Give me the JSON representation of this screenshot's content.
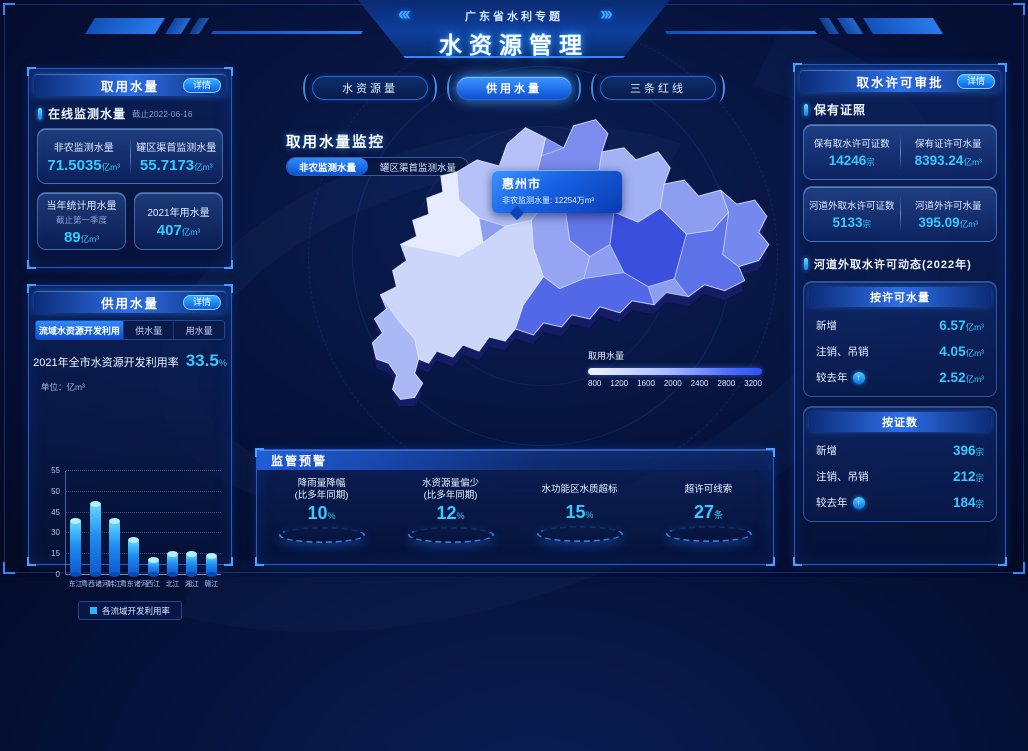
{
  "header": {
    "subtitle": "广东省水利专题",
    "title": "水资源管理"
  },
  "icons": {
    "chev_left": "‹‹‹",
    "chev_right": "›››",
    "arrow_up": "↑"
  },
  "nav_tabs": [
    {
      "label": "水资源量"
    },
    {
      "label": "供用水量"
    },
    {
      "label": "三条红线"
    }
  ],
  "intake": {
    "title": "取用水量",
    "detail": "详情",
    "online_label": "在线监测水量",
    "online_asof": "截止2022-06-16",
    "stats": [
      {
        "label": "非农监测水量",
        "value": "71.5035",
        "unit": "亿m³"
      },
      {
        "label": "罐区渠首监测水量",
        "value": "55.7173",
        "unit": "亿m³"
      }
    ],
    "cards": [
      {
        "label": "当年统计用水量",
        "sub": "截止第一季度",
        "value": "89",
        "unit": "亿m³"
      },
      {
        "label": "2021年用水量",
        "sub": "",
        "value": "407",
        "unit": "亿m³"
      }
    ]
  },
  "supply": {
    "title": "供用水量",
    "detail": "详情",
    "tabs": [
      {
        "label": "流域水资源开发利用"
      },
      {
        "label": "供水量"
      },
      {
        "label": "用水量"
      }
    ],
    "rate_label": "2021年全市水资源开发利用率",
    "rate_value": "33.5",
    "rate_unit": "%",
    "unit_note": "单位：亿m³",
    "legend": "各流域开发利用率"
  },
  "monitor": {
    "title": "取用水量监控",
    "toggles": [
      {
        "label": "非农监测水量"
      },
      {
        "label": "罐区渠首监测水量"
      }
    ],
    "tooltip": {
      "city": "惠州市",
      "label": "非农监测水量: ",
      "value": "12254万m³"
    },
    "scale": {
      "label": "取用水量",
      "ticks": [
        "800",
        "1200",
        "1600",
        "2000",
        "2400",
        "2800",
        "3200"
      ]
    }
  },
  "warning": {
    "title": "监管预警",
    "items": [
      {
        "label": "降雨量降幅",
        "sub": "(比多年同期)",
        "value": "10",
        "unit": "%"
      },
      {
        "label": "水资源量偏少",
        "sub": "(比多年同期)",
        "value": "12",
        "unit": "%"
      },
      {
        "label": "水功能区水质超标",
        "sub": "",
        "value": "15",
        "unit": "%"
      },
      {
        "label": "超许可线索",
        "sub": "",
        "value": "27",
        "unit": "条"
      }
    ]
  },
  "permit": {
    "title": "取水许可审批",
    "detail": "详情",
    "section1": "保有证照",
    "cards": [
      {
        "label": "保有取水许可证数",
        "value": "14246",
        "unit": "宗"
      },
      {
        "label": "保有证许可水量",
        "value": "8393.24",
        "unit": "亿m³"
      },
      {
        "label": "河道外取水许可证数",
        "value": "5133",
        "unit": "宗"
      },
      {
        "label": "河道外许可水量",
        "value": "395.09",
        "unit": "亿m³"
      }
    ],
    "section2": "河道外取水许可动态(2022年)",
    "by_volume": {
      "title": "按许可水量",
      "rows": [
        {
          "label": "新增",
          "value": "6.57",
          "unit": "亿m³",
          "trend": ""
        },
        {
          "label": "注销、吊销",
          "value": "4.05",
          "unit": "亿m³",
          "trend": ""
        },
        {
          "label": "较去年",
          "value": "2.52",
          "unit": "亿m³",
          "trend": "up"
        }
      ]
    },
    "by_count": {
      "title": "按证数",
      "rows": [
        {
          "label": "新增",
          "value": "396",
          "unit": "宗",
          "trend": ""
        },
        {
          "label": "注销、吊销",
          "value": "212",
          "unit": "宗",
          "trend": ""
        },
        {
          "label": "较去年",
          "value": "184",
          "unit": "宗",
          "trend": "up"
        }
      ]
    }
  },
  "chart_data": {
    "type": "bar",
    "title": "各流域开发利用率",
    "unit": "亿m³",
    "categories": [
      "东江",
      "粤西诸河",
      "韩江",
      "粤东诸河",
      "西江",
      "北江",
      "湘江",
      "赣江"
    ],
    "values": [
      39,
      47,
      39,
      25,
      11,
      15,
      15,
      14
    ],
    "yticks": [
      0,
      15,
      30,
      45,
      50,
      55
    ],
    "grid": "dotted",
    "legend_position": "bottom"
  },
  "colors": {
    "accent": "#35c9ff",
    "panel_border": "#2d69d7",
    "titlebar": "#2e6fe6",
    "bar_top": "#63daff",
    "bar_bottom": "#0c58d0",
    "map_selected": "#3b4fdd",
    "scale_start": "#f0f4ff",
    "scale_end": "#2e50f5"
  }
}
